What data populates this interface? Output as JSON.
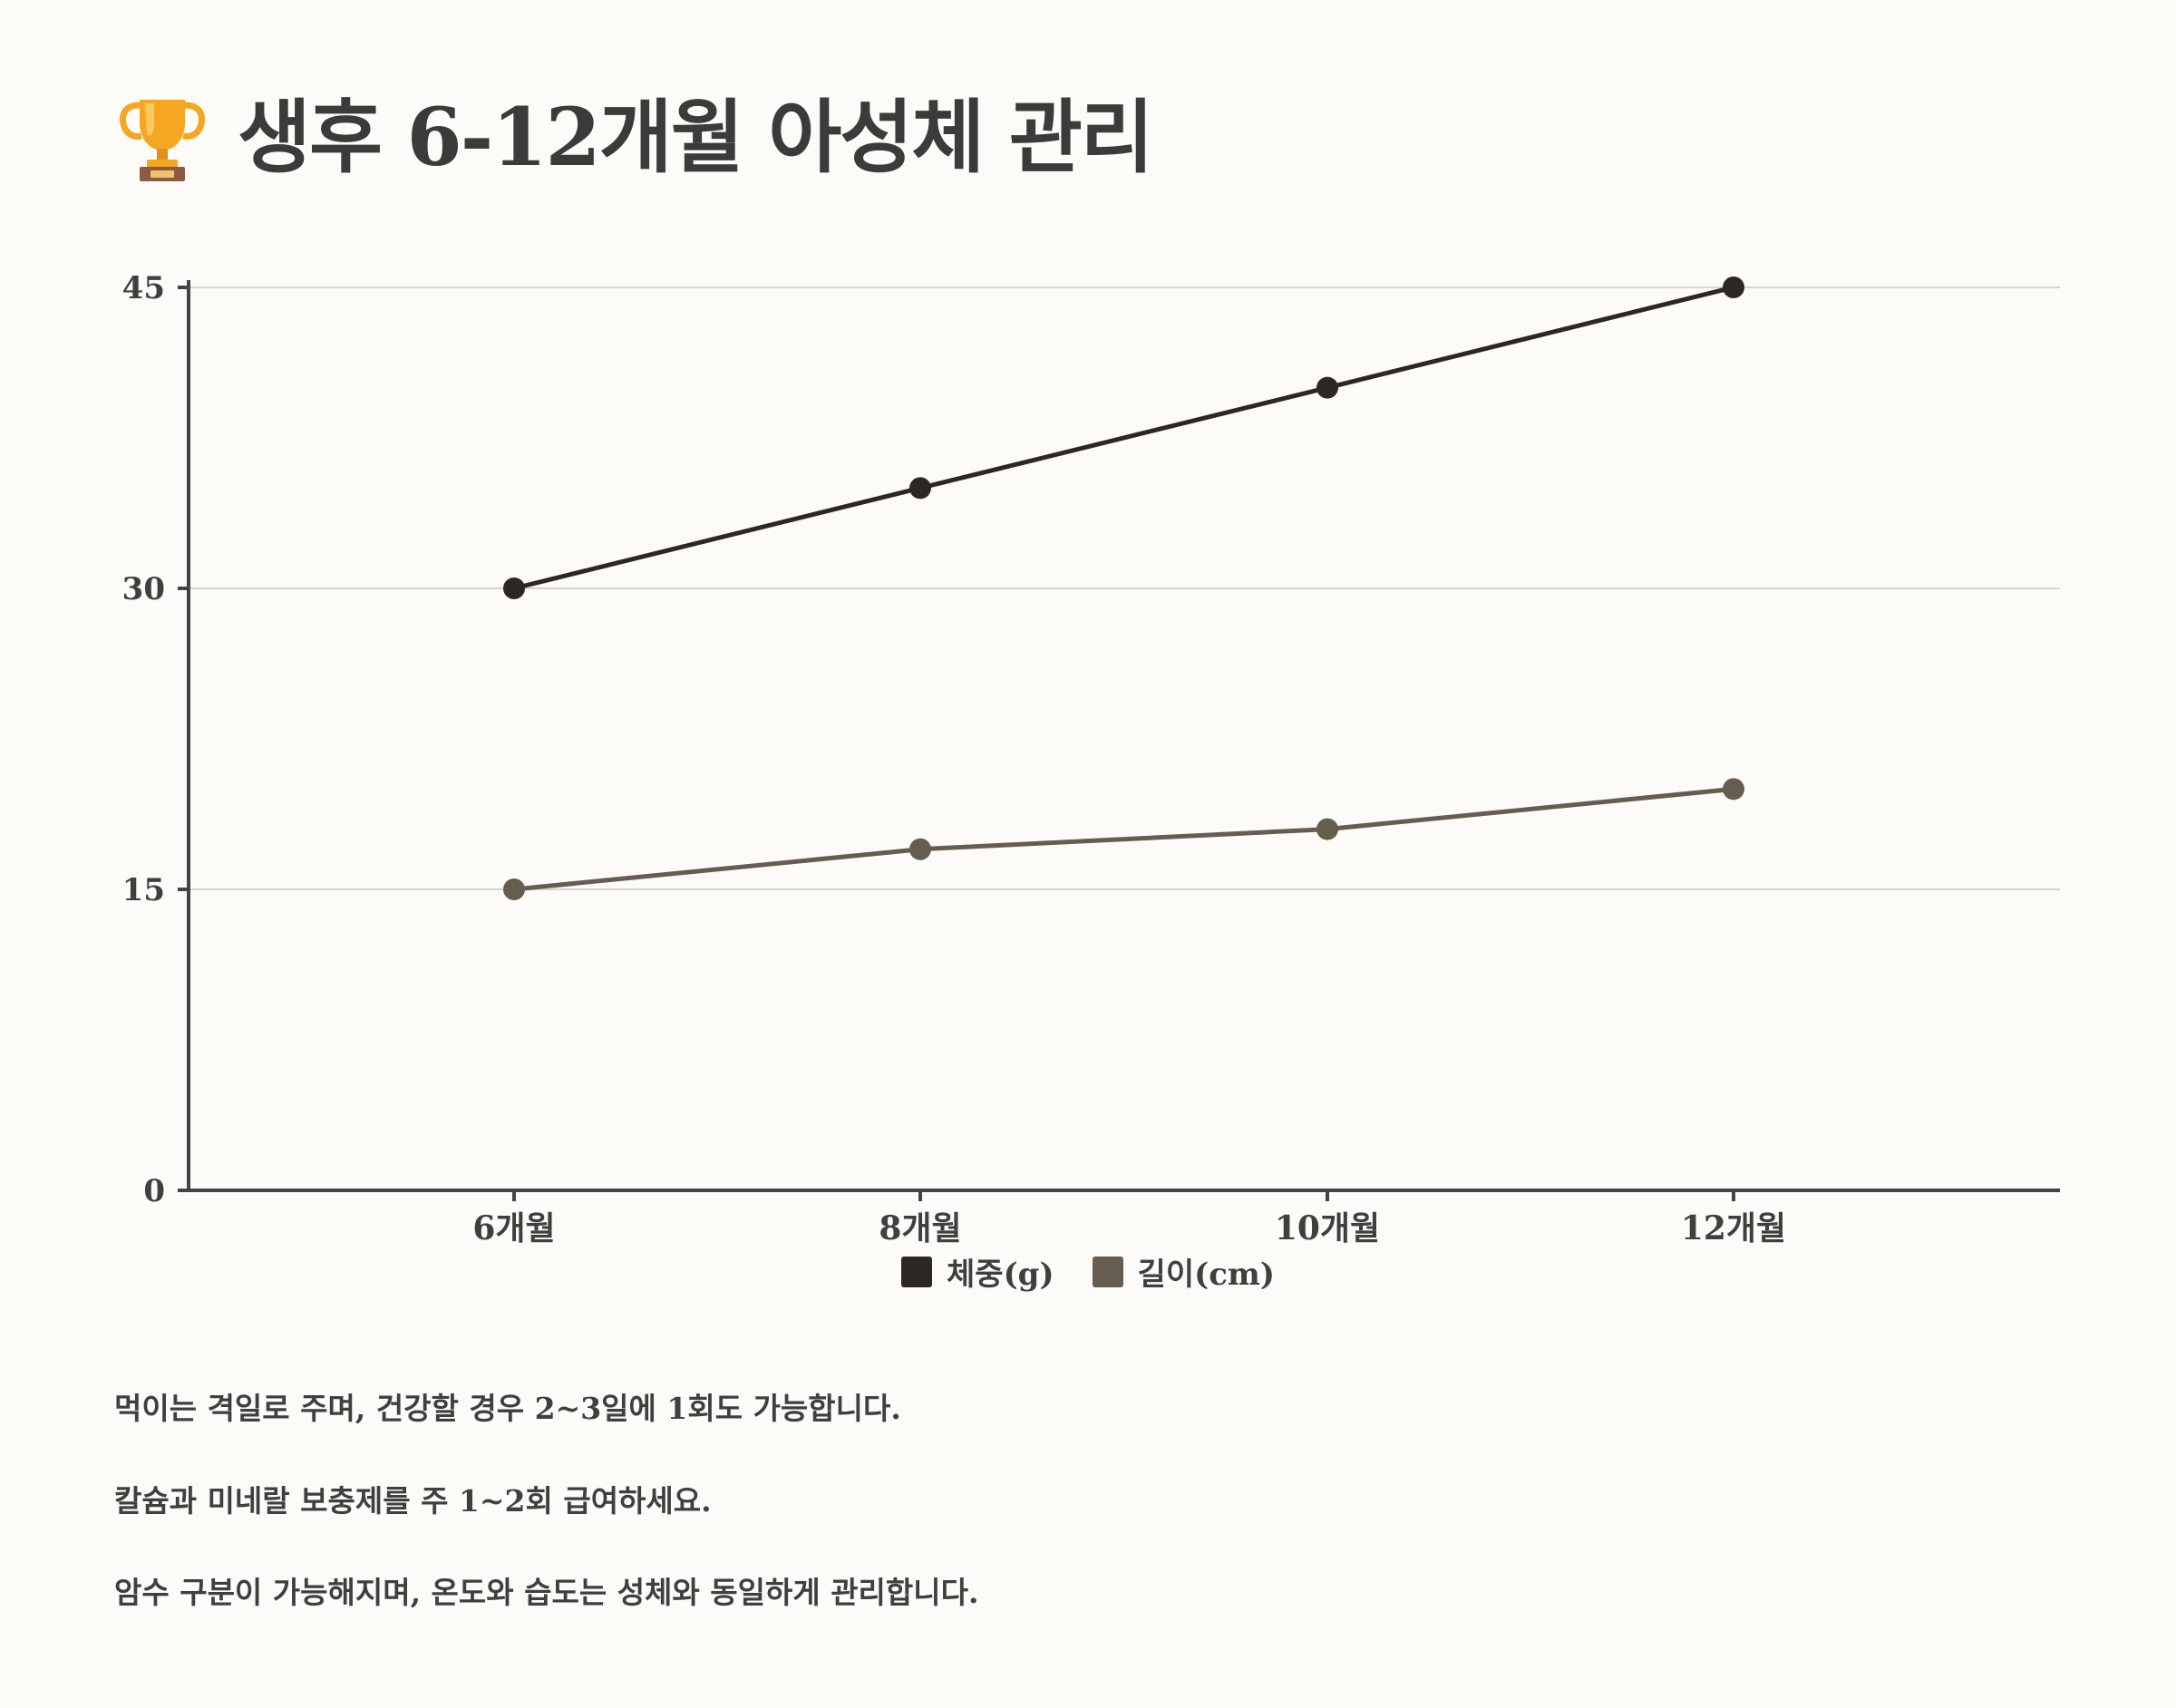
{
  "header": {
    "title": "생후 6-12개월 아성체 관리",
    "icon": "trophy-icon"
  },
  "chart_data": {
    "type": "line",
    "categories": [
      "6개월",
      "8개월",
      "10개월",
      "12개월"
    ],
    "series": [
      {
        "name": "체중(g)",
        "values": [
          30,
          35,
          40,
          45
        ],
        "color": "#2b2824"
      },
      {
        "name": "길이(cm)",
        "values": [
          15,
          17,
          18,
          20
        ],
        "color": "#665d51"
      }
    ],
    "yticks": [
      "0",
      "15",
      "30",
      "45"
    ],
    "ylim": [
      0,
      45
    ],
    "grid": true,
    "legend_position": "bottom"
  },
  "notes": [
    "먹이는 격일로 주며, 건강할 경우 2~3일에 1회도 가능합니다.",
    "칼슘과 미네랄 보충제를 주 1~2회 급여하세요.",
    "암수 구분이 가능해지며, 온도와 습도는 성체와 동일하게 관리합니다."
  ]
}
